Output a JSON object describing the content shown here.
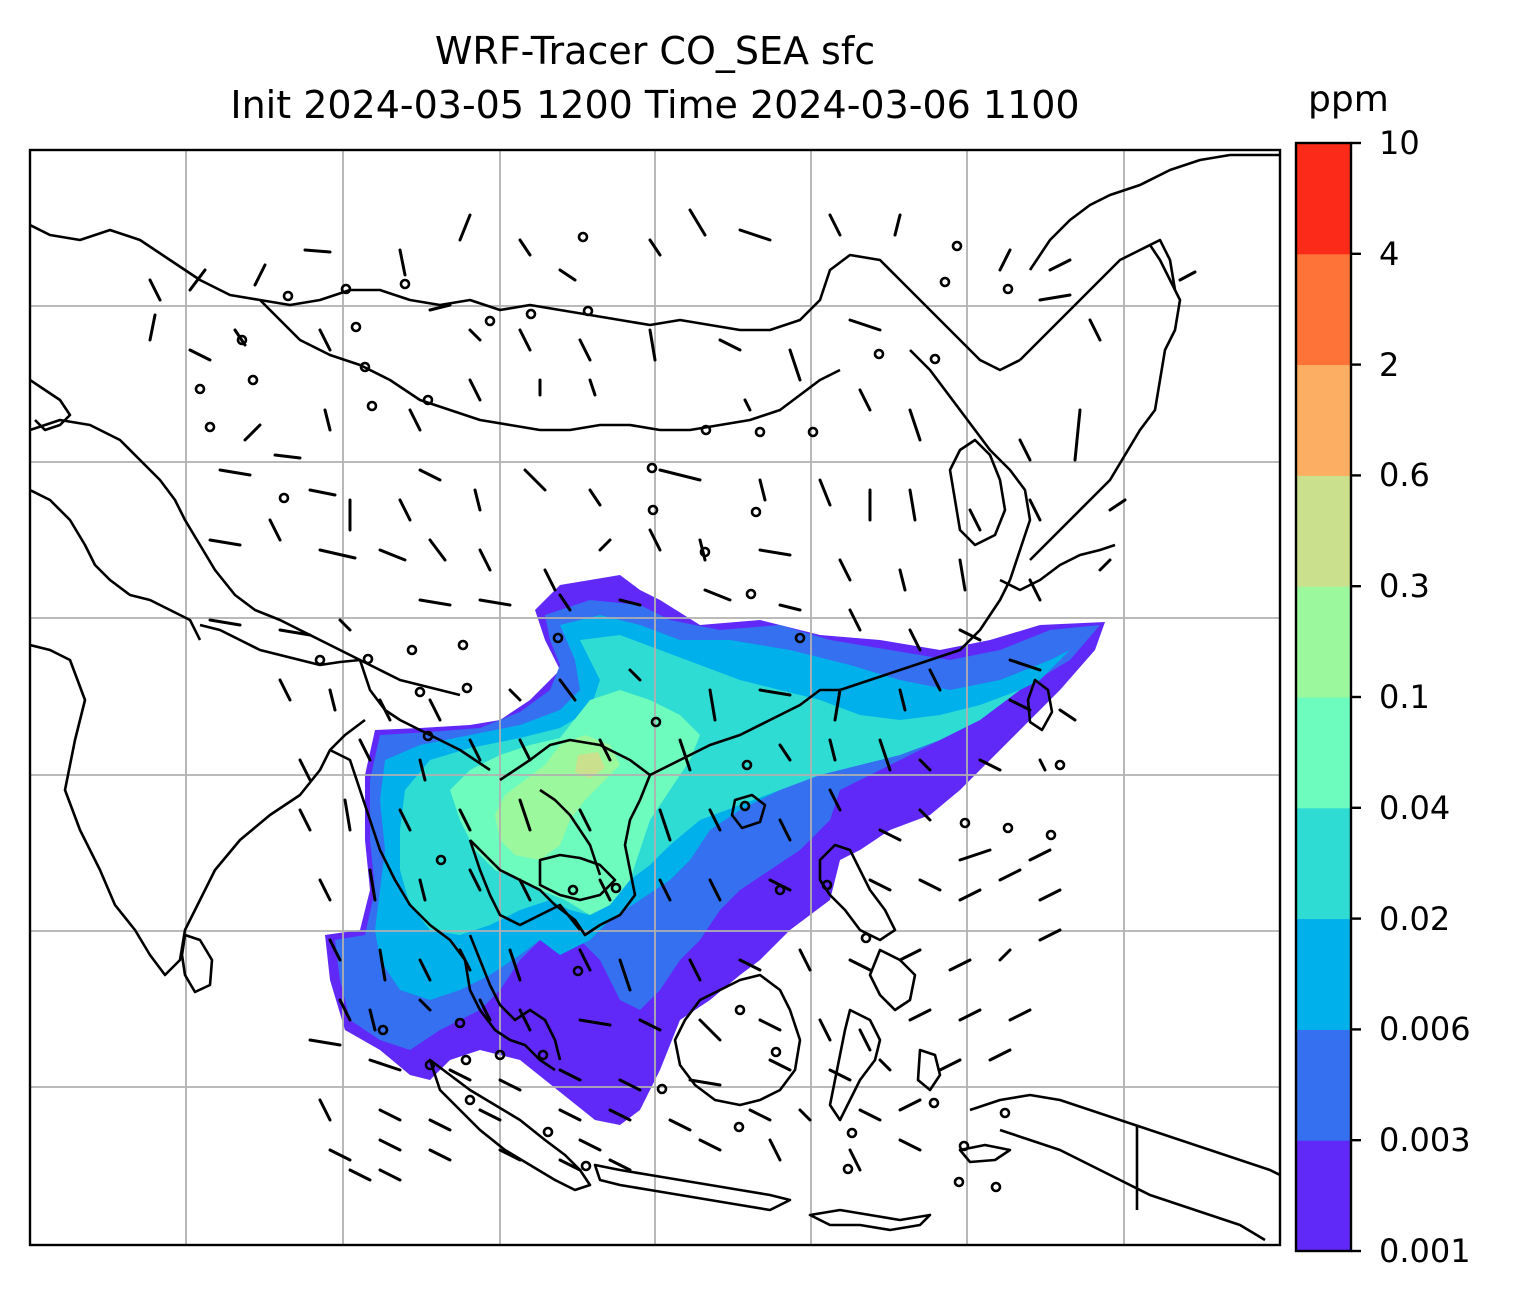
{
  "title": {
    "line1": "WRF-Tracer CO_SEA sfc",
    "line2": "Init 2024-03-05 1200 Time 2024-03-06 1100"
  },
  "colorbar": {
    "unit": "ppm",
    "levels": [
      "0.001",
      "0.003",
      "0.006",
      "0.02",
      "0.04",
      "0.1",
      "0.3",
      "0.6",
      "2",
      "4",
      "10"
    ],
    "colors": [
      "#6029f8",
      "#3470f0",
      "#00b0ea",
      "#2fdcd4",
      "#6dfcbd",
      "#9cf89c",
      "#cbe08c",
      "#fcae62",
      "#fd7338",
      "#fc2a19"
    ]
  },
  "map": {
    "projection": "lat-lon grid",
    "gridlines": true,
    "grid_color": "#b0b0b0",
    "coastline_color": "#000000",
    "wind_barbs": true
  }
}
